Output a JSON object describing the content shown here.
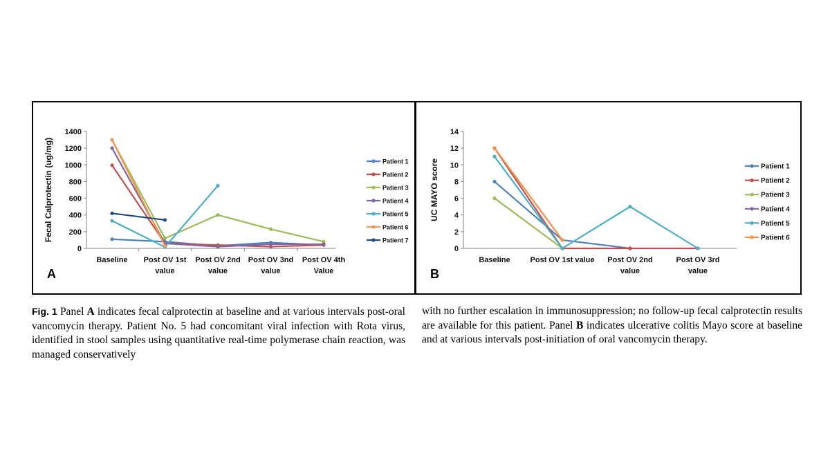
{
  "chart_data": [
    {
      "panel_label": "A",
      "type": "line",
      "ylabel": "Fecal Calprotectin (ug/mg)",
      "ylim": [
        0,
        1400
      ],
      "yticks": [
        0,
        200,
        400,
        600,
        800,
        1000,
        1200,
        1400
      ],
      "categories": [
        [
          "Baseline"
        ],
        [
          "Post OV 1st",
          "value"
        ],
        [
          "Post OV 2nd",
          "value"
        ],
        [
          "Post OV 3nd",
          "value"
        ],
        [
          "Post OV 4th",
          "Value"
        ]
      ],
      "grid": false,
      "legend_position": "right",
      "series": [
        {
          "name": "Patient 1",
          "color": "#4f81bd",
          "values": [
            110,
            80,
            30,
            70,
            40
          ]
        },
        {
          "name": "Patient 2",
          "color": "#c0504d",
          "values": [
            995,
            60,
            40,
            20,
            40
          ]
        },
        {
          "name": "Patient 3",
          "color": "#9bbb59",
          "values": [
            1300,
            120,
            400,
            230,
            80
          ]
        },
        {
          "name": "Patient 4",
          "color": "#8064a2",
          "values": [
            1200,
            60,
            20,
            50,
            50
          ]
        },
        {
          "name": "Patient 5",
          "color": "#4bacc6",
          "values": [
            330,
            15,
            750,
            null,
            null
          ]
        },
        {
          "name": "Patient 6",
          "color": "#f79646",
          "values": [
            1300,
            30,
            null,
            null,
            null
          ]
        },
        {
          "name": "Patient 7",
          "color": "#1f497d",
          "values": [
            420,
            340,
            null,
            null,
            null
          ]
        }
      ]
    },
    {
      "panel_label": "B",
      "type": "line",
      "ylabel": "UC MAYO score",
      "ylim": [
        0,
        14
      ],
      "yticks": [
        0,
        2,
        4,
        6,
        8,
        10,
        12,
        14
      ],
      "categories": [
        [
          "Baseline"
        ],
        [
          "Post OV 1st value"
        ],
        [
          "Post OV 2nd",
          "value"
        ],
        [
          "Post OV 3rd",
          "value"
        ]
      ],
      "grid": false,
      "legend_position": "right",
      "series": [
        {
          "name": "Patient 1",
          "color": "#4f81bd",
          "values": [
            8,
            1,
            0,
            null
          ]
        },
        {
          "name": "Patient 2",
          "color": "#c0504d",
          "values": [
            12,
            0,
            0,
            0
          ]
        },
        {
          "name": "Patient 3",
          "color": "#9bbb59",
          "values": [
            6,
            0,
            null,
            null
          ]
        },
        {
          "name": "Patient 4",
          "color": "#8064a2",
          "values": [
            12,
            1,
            null,
            null
          ]
        },
        {
          "name": "Patient 5",
          "color": "#4bacc6",
          "values": [
            11,
            0,
            5,
            0
          ]
        },
        {
          "name": "Patient 6",
          "color": "#f79646",
          "values": [
            12,
            1,
            null,
            null
          ]
        }
      ]
    }
  ],
  "caption": {
    "fig_label": "Fig. 1",
    "left_parts": [
      " Panel ",
      "A",
      " indicates fecal calprotectin at baseline and at various intervals post-oral vancomycin therapy. Patient No. 5 had concomitant viral infection with Rota virus, identified in stool samples using quantitative real-time polymerase chain reaction, was managed conservatively"
    ],
    "right_parts": [
      "with no further escalation in immunosuppression; no follow-up fecal calprotectin results are available for this patient. Panel ",
      "B",
      " indicates ulcerative colitis Mayo score at baseline and at various intervals post-initiation of oral vancomycin therapy."
    ]
  }
}
